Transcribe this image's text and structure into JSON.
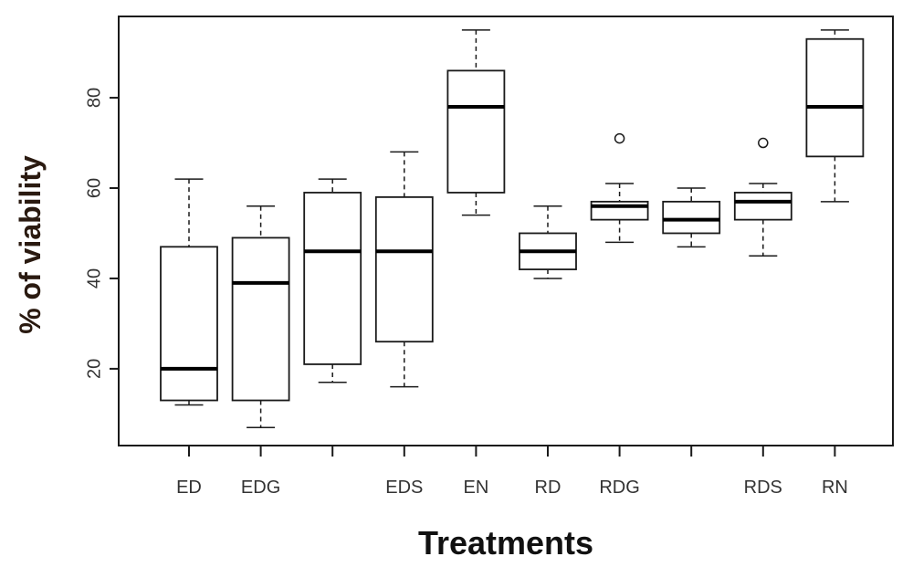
{
  "chart_data": {
    "type": "box",
    "xlabel": "Treatments",
    "ylabel": "% of viability",
    "ylim": [
      3,
      98
    ],
    "yticks": [
      20,
      40,
      60,
      80
    ],
    "grid": false,
    "categories": [
      "ED",
      "EDG",
      "",
      "EDS",
      "EN",
      "RD",
      "RDG",
      "",
      "RDS",
      "RN"
    ],
    "boxes": [
      {
        "whisker_low": 12,
        "q1": 13,
        "median": 20,
        "q3": 47,
        "whisker_high": 62,
        "outliers": []
      },
      {
        "whisker_low": 7,
        "q1": 13,
        "median": 39,
        "q3": 49,
        "whisker_high": 56,
        "outliers": []
      },
      {
        "whisker_low": 17,
        "q1": 21,
        "median": 46,
        "q3": 59,
        "whisker_high": 62,
        "outliers": []
      },
      {
        "whisker_low": 16,
        "q1": 26,
        "median": 46,
        "q3": 58,
        "whisker_high": 68,
        "outliers": []
      },
      {
        "whisker_low": 54,
        "q1": 59,
        "median": 78,
        "q3": 86,
        "whisker_high": 95,
        "outliers": []
      },
      {
        "whisker_low": 40,
        "q1": 42,
        "median": 46,
        "q3": 50,
        "whisker_high": 56,
        "outliers": []
      },
      {
        "whisker_low": 48,
        "q1": 53,
        "median": 56,
        "q3": 57,
        "whisker_high": 61,
        "outliers": [
          71
        ]
      },
      {
        "whisker_low": 47,
        "q1": 50,
        "median": 53,
        "q3": 57,
        "whisker_high": 60,
        "outliers": []
      },
      {
        "whisker_low": 45,
        "q1": 53,
        "median": 57,
        "q3": 59,
        "whisker_high": 61,
        "outliers": [
          70
        ]
      },
      {
        "whisker_low": 57,
        "q1": 67,
        "median": 78,
        "q3": 93,
        "whisker_high": 95,
        "outliers": []
      }
    ]
  },
  "colors": {
    "box_stroke": "#1a1a1a",
    "median": "#000000",
    "background": "#ffffff"
  }
}
